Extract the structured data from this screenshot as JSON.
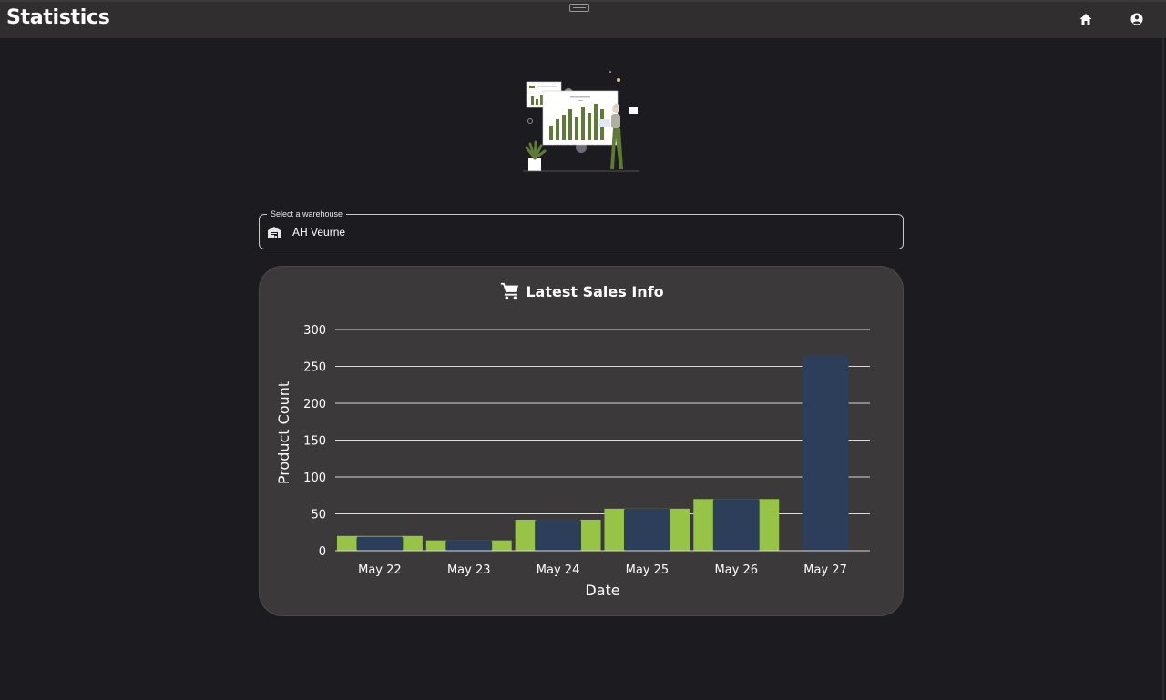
{
  "app": {
    "title": "Statistics"
  },
  "topbar": {
    "home_icon": "home-icon",
    "account_icon": "account-circle-icon"
  },
  "warehouse_select": {
    "label": "Select a warehouse",
    "value": "AH Veurne",
    "icon": "warehouse-icon"
  },
  "sales_card": {
    "title": "Latest Sales Info",
    "icon": "cart-icon"
  },
  "colors": {
    "green": "#97c447",
    "navy": "#2d3e5a",
    "card": "#3b3939",
    "background": "#1c1b1f"
  },
  "chart_data": {
    "type": "bar",
    "categories": [
      "May 22",
      "May 23",
      "May 24",
      "May 25",
      "May 26",
      "May 27"
    ],
    "series": [
      {
        "color": "#97c447",
        "values": [
          20,
          14,
          42,
          57,
          70,
          null
        ]
      },
      {
        "color": "#2d3e5a",
        "values": [
          19,
          14,
          42,
          57,
          70,
          265
        ]
      }
    ],
    "xlabel": "Date",
    "ylabel": "Product Count",
    "ylim": [
      0,
      300
    ],
    "yticks": [
      0,
      50,
      100,
      150,
      200,
      250,
      300
    ],
    "grid": true
  }
}
